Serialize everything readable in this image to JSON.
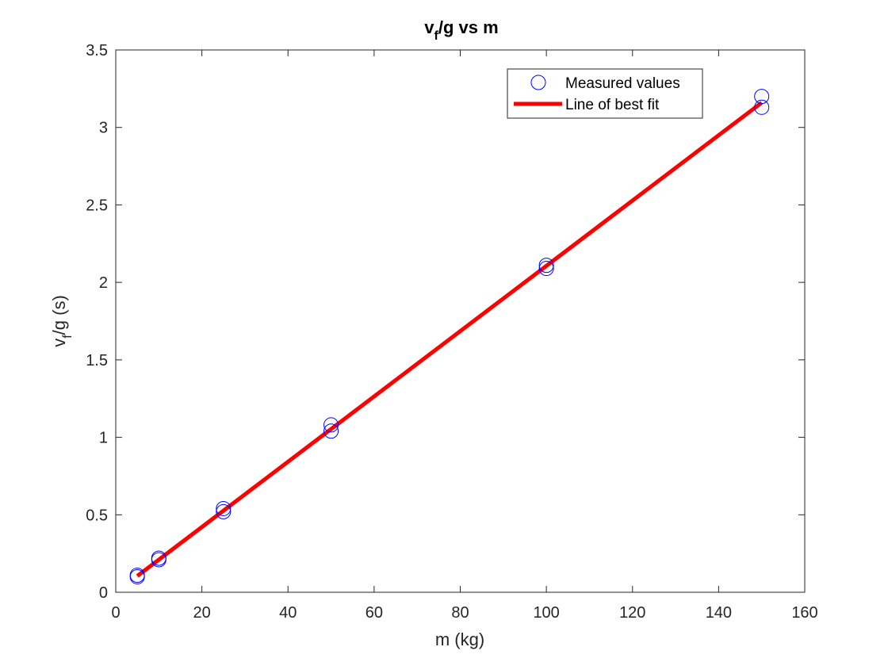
{
  "chart_data": {
    "type": "scatter",
    "title": {
      "base": "v",
      "sub": "f",
      "rest": "/g vs m"
    },
    "xlabel": "m (kg)",
    "ylabel": {
      "base": "v",
      "sub": "f",
      "rest": "/g (s)"
    },
    "xlim": [
      0,
      160
    ],
    "ylim": [
      0,
      3.5
    ],
    "xticks": [
      "0",
      "20",
      "40",
      "60",
      "80",
      "100",
      "120",
      "140",
      "160"
    ],
    "yticks": [
      "0",
      "0.5",
      "1",
      "1.5",
      "2",
      "2.5",
      "3",
      "3.5"
    ],
    "grid": false,
    "legend_position": "top-right",
    "series": [
      {
        "name": "Measured values",
        "type": "scatter",
        "marker": "circle",
        "color": "#0000ff",
        "x": [
          5,
          5,
          10,
          10,
          25,
          25,
          50,
          50,
          100,
          100,
          150,
          150
        ],
        "y": [
          0.1,
          0.11,
          0.21,
          0.22,
          0.52,
          0.54,
          1.04,
          1.08,
          2.09,
          2.11,
          3.13,
          3.2
        ]
      },
      {
        "name": "Line of best fit",
        "type": "line",
        "color": "#ff0000",
        "x": [
          5,
          150
        ],
        "y": [
          0.105,
          3.16
        ]
      }
    ]
  }
}
